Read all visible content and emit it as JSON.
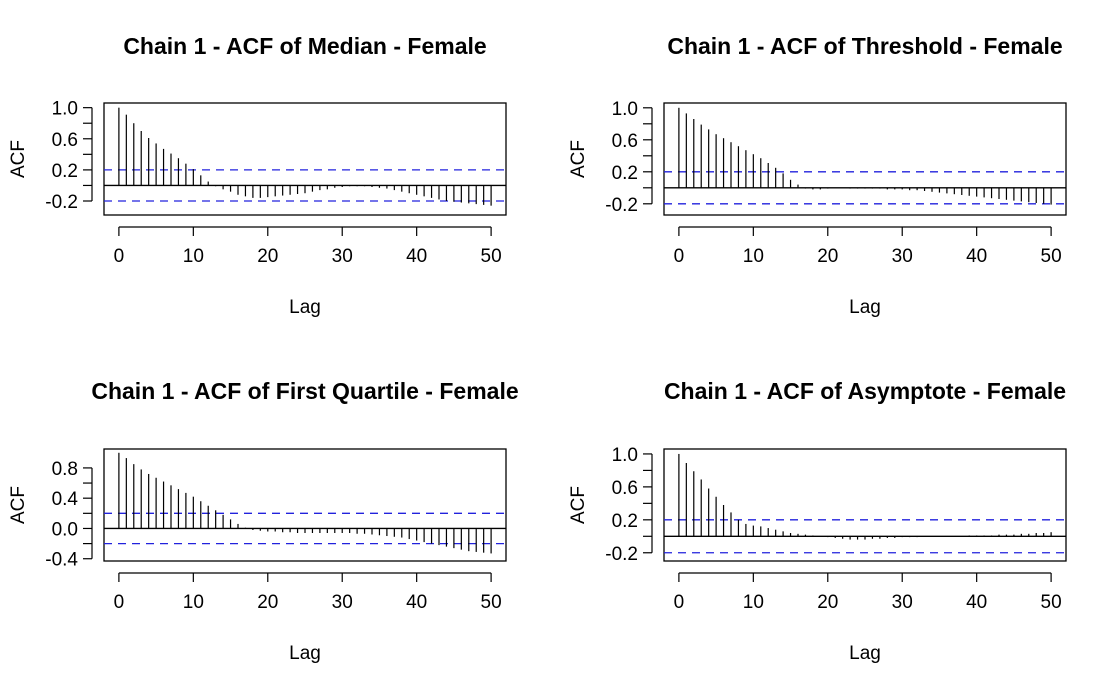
{
  "chart_data": [
    {
      "type": "bar",
      "title": "Chain 1 - ACF of Median - Female",
      "xlabel": "Lag",
      "ylabel": "ACF",
      "xlim": [
        -2,
        52
      ],
      "ylim": [
        -0.38,
        1.06
      ],
      "xticks": [
        0,
        10,
        20,
        30,
        40,
        50
      ],
      "xtick_labels": [
        "0",
        "10",
        "20",
        "30",
        "40",
        "50"
      ],
      "yticks": [
        1.0,
        0.6,
        0.2,
        -0.2
      ],
      "ytick_labels": [
        "1.0",
        "0.6",
        "0.2",
        "-0.2"
      ],
      "ci": 0.2,
      "lags": [
        0,
        1,
        2,
        3,
        4,
        5,
        6,
        7,
        8,
        9,
        10,
        11,
        12,
        13,
        14,
        15,
        16,
        17,
        18,
        19,
        20,
        21,
        22,
        23,
        24,
        25,
        26,
        27,
        28,
        29,
        30,
        31,
        32,
        33,
        34,
        35,
        36,
        37,
        38,
        39,
        40,
        41,
        42,
        43,
        44,
        45,
        46,
        47,
        48,
        49,
        50
      ],
      "values": [
        1.0,
        0.91,
        0.8,
        0.7,
        0.61,
        0.54,
        0.47,
        0.41,
        0.35,
        0.28,
        0.21,
        0.13,
        0.05,
        -0.01,
        -0.05,
        -0.08,
        -0.12,
        -0.14,
        -0.16,
        -0.16,
        -0.15,
        -0.14,
        -0.13,
        -0.12,
        -0.11,
        -0.1,
        -0.08,
        -0.06,
        -0.05,
        -0.03,
        -0.02,
        -0.01,
        -0.01,
        -0.01,
        -0.02,
        -0.03,
        -0.04,
        -0.06,
        -0.08,
        -0.1,
        -0.12,
        -0.14,
        -0.16,
        -0.18,
        -0.2,
        -0.21,
        -0.22,
        -0.23,
        -0.24,
        -0.25,
        -0.26
      ]
    },
    {
      "type": "bar",
      "title": "Chain 1 - ACF of Threshold - Female",
      "xlabel": "Lag",
      "ylabel": "ACF",
      "xlim": [
        -2,
        52
      ],
      "ylim": [
        -0.34,
        1.06
      ],
      "xticks": [
        0,
        10,
        20,
        30,
        40,
        50
      ],
      "xtick_labels": [
        "0",
        "10",
        "20",
        "30",
        "40",
        "50"
      ],
      "yticks": [
        1.0,
        0.6,
        0.2,
        -0.2
      ],
      "ytick_labels": [
        "1.0",
        "0.6",
        "0.2",
        "-0.2"
      ],
      "ci": 0.2,
      "lags": [
        0,
        1,
        2,
        3,
        4,
        5,
        6,
        7,
        8,
        9,
        10,
        11,
        12,
        13,
        14,
        15,
        16,
        17,
        18,
        19,
        20,
        21,
        22,
        23,
        24,
        25,
        26,
        27,
        28,
        29,
        30,
        31,
        32,
        33,
        34,
        35,
        36,
        37,
        38,
        39,
        40,
        41,
        42,
        43,
        44,
        45,
        46,
        47,
        48,
        49,
        50
      ],
      "values": [
        1.0,
        0.93,
        0.86,
        0.79,
        0.73,
        0.67,
        0.62,
        0.57,
        0.52,
        0.47,
        0.42,
        0.37,
        0.31,
        0.25,
        0.18,
        0.1,
        0.04,
        -0.01,
        -0.02,
        -0.02,
        -0.01,
        0.0,
        0.0,
        -0.01,
        -0.01,
        -0.01,
        -0.01,
        -0.01,
        -0.02,
        -0.02,
        -0.02,
        -0.03,
        -0.03,
        -0.04,
        -0.05,
        -0.06,
        -0.07,
        -0.08,
        -0.09,
        -0.1,
        -0.11,
        -0.12,
        -0.13,
        -0.14,
        -0.15,
        -0.16,
        -0.17,
        -0.18,
        -0.19,
        -0.2,
        -0.21
      ]
    },
    {
      "type": "bar",
      "title": "Chain 1 - ACF of First Quartile - Female",
      "xlabel": "Lag",
      "ylabel": "ACF",
      "xlim": [
        -2,
        52
      ],
      "ylim": [
        -0.43,
        1.05
      ],
      "xticks": [
        0,
        10,
        20,
        30,
        40,
        50
      ],
      "xtick_labels": [
        "0",
        "10",
        "20",
        "30",
        "40",
        "50"
      ],
      "yticks": [
        0.8,
        0.4,
        0.0,
        -0.4
      ],
      "ytick_labels": [
        "0.8",
        "0.4",
        "0.0",
        "-0.4"
      ],
      "ci": 0.2,
      "lags": [
        0,
        1,
        2,
        3,
        4,
        5,
        6,
        7,
        8,
        9,
        10,
        11,
        12,
        13,
        14,
        15,
        16,
        17,
        18,
        19,
        20,
        21,
        22,
        23,
        24,
        25,
        26,
        27,
        28,
        29,
        30,
        31,
        32,
        33,
        34,
        35,
        36,
        37,
        38,
        39,
        40,
        41,
        42,
        43,
        44,
        45,
        46,
        47,
        48,
        49,
        50
      ],
      "values": [
        1.0,
        0.93,
        0.85,
        0.78,
        0.72,
        0.67,
        0.62,
        0.57,
        0.52,
        0.47,
        0.42,
        0.36,
        0.3,
        0.24,
        0.18,
        0.12,
        0.06,
        0.01,
        -0.02,
        -0.03,
        -0.04,
        -0.04,
        -0.05,
        -0.05,
        -0.06,
        -0.06,
        -0.06,
        -0.06,
        -0.06,
        -0.06,
        -0.06,
        -0.06,
        -0.07,
        -0.07,
        -0.08,
        -0.09,
        -0.1,
        -0.11,
        -0.12,
        -0.14,
        -0.16,
        -0.18,
        -0.2,
        -0.22,
        -0.24,
        -0.26,
        -0.28,
        -0.3,
        -0.31,
        -0.32,
        -0.33
      ]
    },
    {
      "type": "bar",
      "title": "Chain 1 - ACF of Asymptote - Female",
      "xlabel": "Lag",
      "ylabel": "ACF",
      "xlim": [
        -2,
        52
      ],
      "ylim": [
        -0.3,
        1.06
      ],
      "xticks": [
        0,
        10,
        20,
        30,
        40,
        50
      ],
      "xtick_labels": [
        "0",
        "10",
        "20",
        "30",
        "40",
        "50"
      ],
      "yticks": [
        1.0,
        0.6,
        0.2,
        -0.2
      ],
      "ytick_labels": [
        "1.0",
        "0.6",
        "0.2",
        "-0.2"
      ],
      "ci": 0.2,
      "lags": [
        0,
        1,
        2,
        3,
        4,
        5,
        6,
        7,
        8,
        9,
        10,
        11,
        12,
        13,
        14,
        15,
        16,
        17,
        18,
        19,
        20,
        21,
        22,
        23,
        24,
        25,
        26,
        27,
        28,
        29,
        30,
        31,
        32,
        33,
        34,
        35,
        36,
        37,
        38,
        39,
        40,
        41,
        42,
        43,
        44,
        45,
        46,
        47,
        48,
        49,
        50
      ],
      "values": [
        1.0,
        0.89,
        0.79,
        0.69,
        0.58,
        0.48,
        0.38,
        0.29,
        0.2,
        0.15,
        0.13,
        0.12,
        0.1,
        0.08,
        0.06,
        0.04,
        0.03,
        0.02,
        0.01,
        0.0,
        -0.01,
        -0.02,
        -0.03,
        -0.04,
        -0.04,
        -0.04,
        -0.03,
        -0.03,
        -0.02,
        -0.02,
        -0.01,
        -0.01,
        -0.01,
        0.0,
        0.0,
        0.0,
        0.0,
        0.0,
        0.0,
        0.01,
        0.01,
        0.01,
        0.01,
        0.02,
        0.02,
        0.02,
        0.03,
        0.03,
        0.04,
        0.04,
        0.05
      ]
    }
  ],
  "colors": {
    "ci_line": "#2222dd",
    "spike": "#000000",
    "axis": "#000000"
  }
}
